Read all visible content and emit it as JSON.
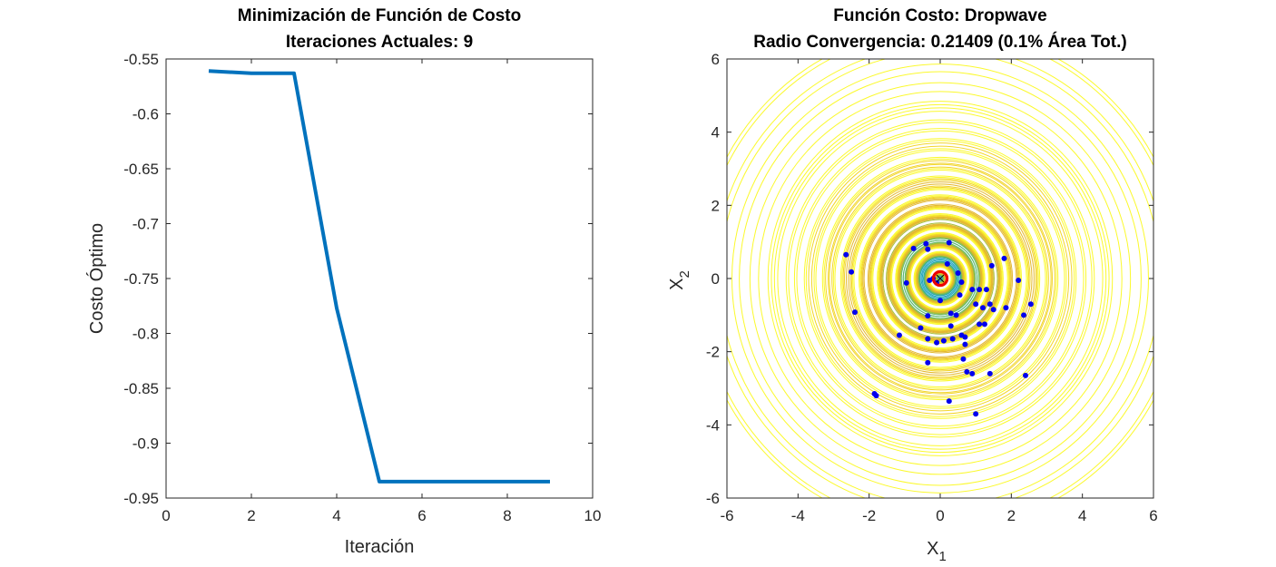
{
  "chart_data": [
    {
      "type": "line",
      "title": "Minimización de Función de Costo",
      "subtitle": "Iteraciones Actuales: 9",
      "xlabel": "Iteración",
      "ylabel": "Costo Óptimo",
      "xlim": [
        0,
        10
      ],
      "ylim": [
        -0.95,
        -0.55
      ],
      "xticks": [
        "0",
        "2",
        "4",
        "6",
        "8",
        "10"
      ],
      "yticks": [
        "-0.55",
        "-0.6",
        "-0.65",
        "-0.7",
        "-0.75",
        "-0.8",
        "-0.85",
        "-0.9",
        "-0.95"
      ],
      "grid": false,
      "line_color": "#0072BD",
      "series": [
        {
          "x": [
            1,
            2,
            3,
            4,
            5,
            6,
            7,
            8,
            9
          ],
          "values": [
            -0.561,
            -0.563,
            -0.563,
            -0.777,
            -0.935,
            -0.935,
            -0.935,
            -0.935,
            -0.935
          ]
        }
      ]
    },
    {
      "type": "scatter",
      "title": "Función Costo: Dropwave",
      "subtitle": "Radio Convergencia: 0.21409 (0.1% Área Tot.)",
      "xlabel": "X",
      "xlabel_sub": "1",
      "ylabel": "X",
      "ylabel_sub": "2",
      "xlim": [
        -6,
        6
      ],
      "ylim": [
        -6,
        6
      ],
      "xticks": [
        "-6",
        "-4",
        "-2",
        "0",
        "2",
        "4",
        "6"
      ],
      "yticks": [
        "6",
        "4",
        "2",
        "0",
        "-2",
        "-4",
        "-6"
      ],
      "grid": false,
      "contour_function": "dropwave",
      "contour_colors": [
        "#1fa5b9",
        "#5bb86e",
        "#a4be3c",
        "#e3b82e",
        "#f2d52a",
        "#fbf92c"
      ],
      "point_color": "#0000EE",
      "best_color": "#EE0000",
      "convergence_radius": 0.21409,
      "best_point": {
        "x": 0,
        "y": 0
      },
      "points": {
        "x": [
          -2.65,
          -2.5,
          -2.4,
          -0.95,
          -0.75,
          -0.4,
          -0.35,
          -0.3,
          -0.1,
          0.25,
          -0.2,
          0.2,
          0.5,
          0.6,
          0.9,
          1.1,
          1.3,
          1.45,
          1.8,
          -0.35,
          0,
          0.3,
          0.45,
          0.55,
          1.2,
          1.4,
          2.2,
          1.0,
          1.1,
          1.25,
          0.3,
          0.6,
          -0.55,
          0.7,
          0.9,
          1.5,
          1.85,
          2.35,
          2.55,
          -1.8,
          -1.15,
          -0.35,
          -0.1,
          0.1,
          0.35,
          0.65,
          0.75,
          1.4,
          2.4,
          -0.35,
          0.25,
          -1.85,
          0.7,
          1.0
        ],
        "y": [
          0.65,
          0.18,
          -0.92,
          -0.12,
          0.82,
          0.95,
          0.8,
          -0.05,
          -0.12,
          0.98,
          0.0,
          0.4,
          0.15,
          -0.1,
          -0.3,
          -0.3,
          -0.3,
          0.35,
          0.55,
          -1.02,
          -0.6,
          -0.95,
          -1.0,
          -0.45,
          -0.8,
          -0.7,
          -0.05,
          -0.7,
          -1.25,
          -1.25,
          -1.3,
          -1.55,
          -1.35,
          -1.8,
          -2.6,
          -0.85,
          -0.8,
          -1.0,
          -0.7,
          -3.2,
          -1.55,
          -1.65,
          -1.75,
          -1.7,
          -1.65,
          -2.2,
          -2.55,
          -2.6,
          -2.65,
          -2.3,
          -3.35,
          -3.15,
          -1.6,
          -3.7
        ]
      }
    }
  ]
}
